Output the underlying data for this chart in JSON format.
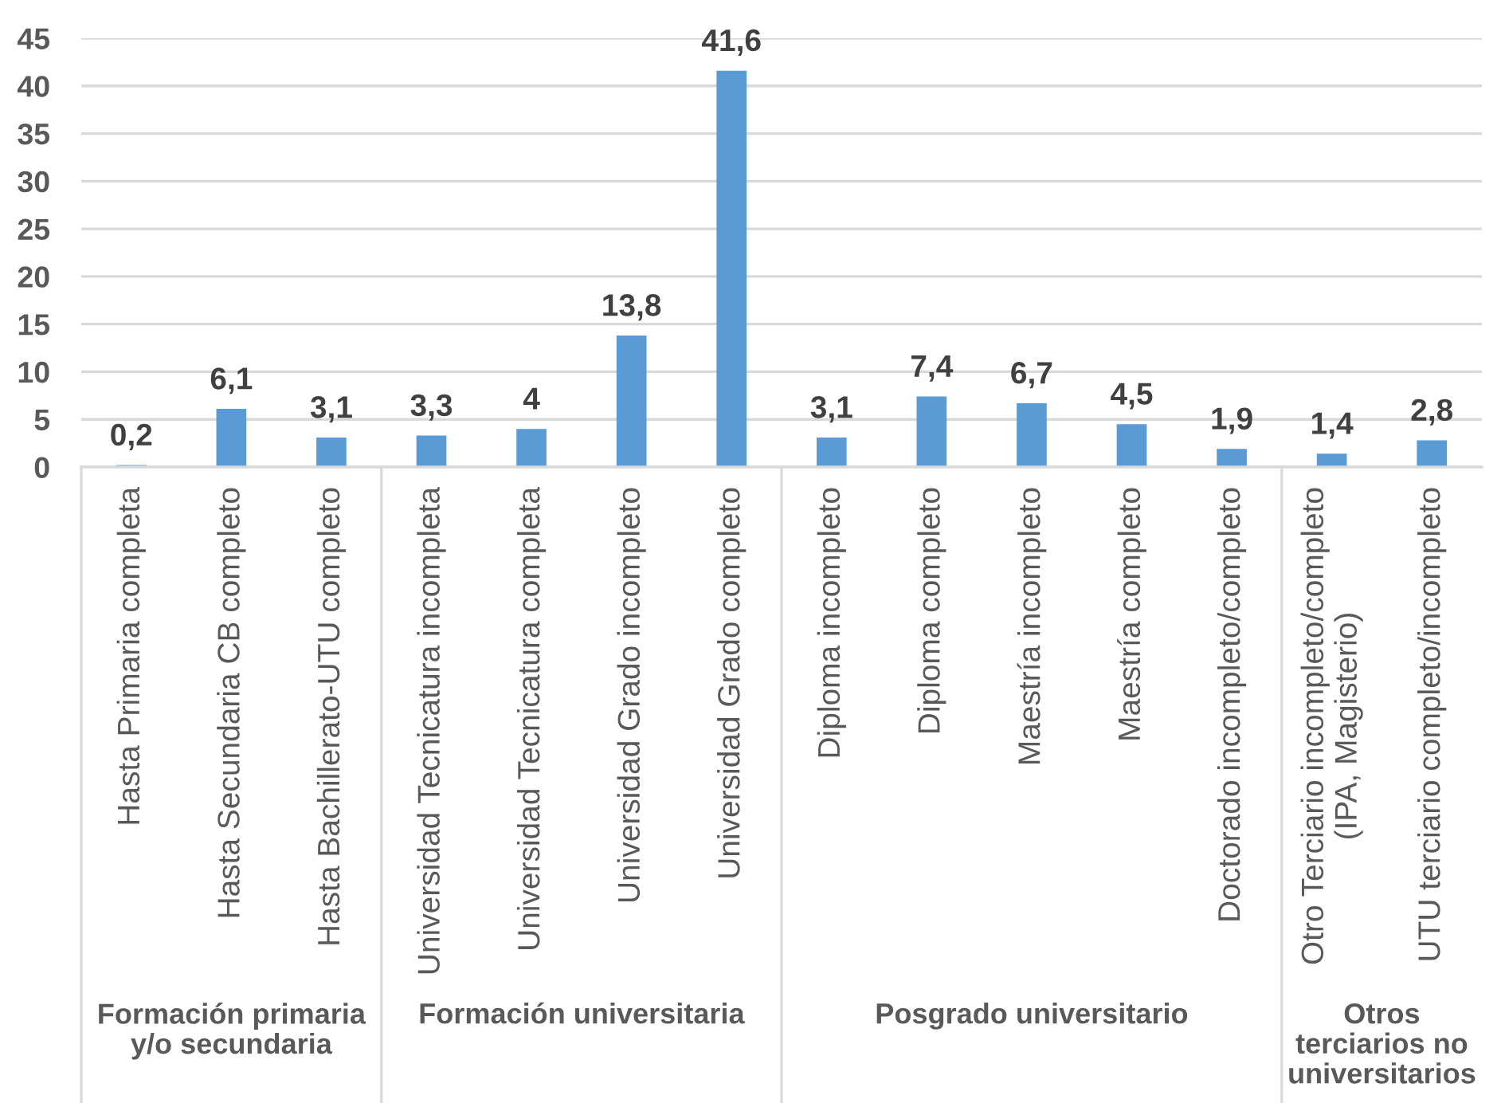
{
  "chart_data": {
    "type": "bar",
    "categories": [
      "Hasta Primaria completa",
      "Hasta Secundaria CB completo",
      "Hasta Bachillerato-UTU completo",
      "Universidad Tecnicatura incompleta",
      "Universidad Tecnicatura completa",
      "Universidad Grado incompleto",
      "Universidad Grado completo",
      "Diploma incompleto",
      "Diploma completo",
      "Maestría incompleto",
      "Maestría completo",
      "Doctorado incompleto/completo",
      "Otro Terciario incompleto/completo\n(IPA, Magisterio)",
      "UTU terciario completo/incompleto"
    ],
    "values": [
      0.2,
      6.1,
      3.1,
      3.3,
      4,
      13.8,
      41.6,
      3.1,
      7.4,
      6.7,
      4.5,
      1.9,
      1.4,
      2.8
    ],
    "value_labels": [
      "0,2",
      "6,1",
      "3,1",
      "3,3",
      "4",
      "13,8",
      "41,6",
      "3,1",
      "7,4",
      "6,7",
      "4,5",
      "1,9",
      "1,4",
      "2,8"
    ],
    "color": "#5b9bd5",
    "ylim": [
      0,
      45
    ],
    "yticks": [
      0,
      5,
      10,
      15,
      20,
      25,
      30,
      35,
      40,
      45
    ],
    "grid": "y",
    "annotations": [
      "Formación primaria\ny/o secundaria",
      "Formación universitaria",
      "Posgrado universitario",
      "Otros\nterciarios no\nuniversitarios"
    ]
  }
}
